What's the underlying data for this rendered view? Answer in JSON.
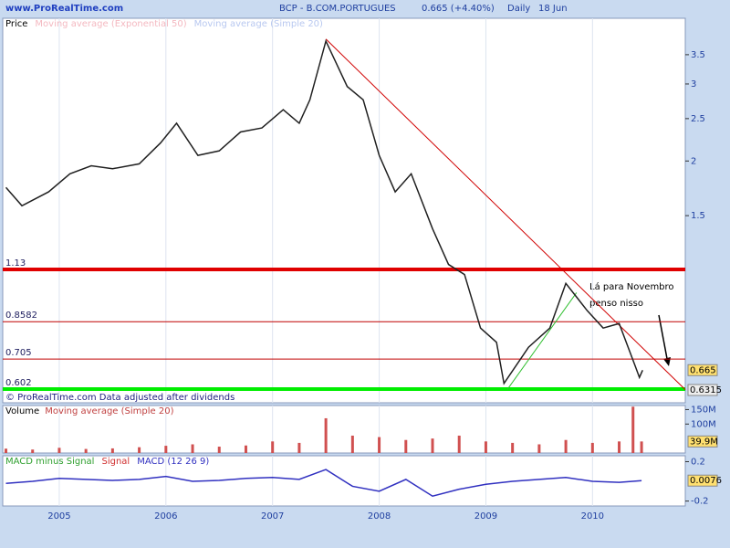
{
  "site": "www.ProRealTime.com",
  "title": "BCP - B.COM.PORTUGUES",
  "quote": "0.665 (+4.40%)",
  "period": "Daily",
  "date": "18 Jun",
  "copyright": "© ProRealTime.com  Data adjusted after dividends",
  "annotation": [
    "Lá para Novembro",
    "penso nisso"
  ],
  "chart_data": [
    {
      "type": "line",
      "title": "Price",
      "log_scale": true,
      "indicators": [
        {
          "name": "Moving average (Exponential 50)",
          "color": "#f4b8c0"
        },
        {
          "name": "Moving average (Simple 20)",
          "color": "#b8c8f0"
        }
      ],
      "xlim": [
        2004.47,
        2010.87
      ],
      "xticks": [
        2005,
        2006,
        2007,
        2008,
        2009,
        2010
      ],
      "ylim": [
        0.56,
        4.24
      ],
      "yticks": [
        1.5,
        2,
        2.5,
        3,
        3.5
      ],
      "x": [
        2004.5,
        2004.65,
        2004.9,
        2005.1,
        2005.3,
        2005.5,
        2005.75,
        2005.95,
        2006.1,
        2006.3,
        2006.5,
        2006.7,
        2006.9,
        2007.1,
        2007.25,
        2007.35,
        2007.5,
        2007.7,
        2007.85,
        2008.0,
        2008.15,
        2008.3,
        2008.5,
        2008.65,
        2008.8,
        2008.95,
        2009.1,
        2009.17,
        2009.4,
        2009.6,
        2009.75,
        2009.95,
        2010.1,
        2010.25,
        2010.4,
        2010.44,
        2010.47
      ],
      "series": [
        {
          "name": "Price",
          "color": "#202020",
          "values": [
            1.74,
            1.58,
            1.7,
            1.87,
            1.95,
            1.92,
            1.97,
            2.2,
            2.44,
            2.06,
            2.11,
            2.33,
            2.38,
            2.62,
            2.44,
            2.76,
            3.76,
            2.96,
            2.76,
            2.06,
            1.7,
            1.87,
            1.4,
            1.16,
            1.1,
            0.83,
            0.77,
            0.62,
            0.75,
            0.83,
            1.05,
            0.91,
            0.83,
            0.85,
            0.68,
            0.64,
            0.665
          ]
        }
      ],
      "levels": [
        {
          "value": 1.13,
          "color": "#e00000",
          "style": "thick"
        },
        {
          "value": 0.8582,
          "color": "#c00000",
          "style": "thin"
        },
        {
          "value": 0.705,
          "color": "#c00000",
          "style": "thin"
        },
        {
          "value": 0.602,
          "color": "#00ee00",
          "style": "thick"
        }
      ],
      "trendlines": [
        {
          "color": "#d00000",
          "x": [
            2007.5,
            2010.87
          ],
          "values": [
            3.8,
            0.6
          ]
        },
        {
          "color": "#30c030",
          "x": [
            2009.2,
            2009.85
          ],
          "values": [
            0.6,
            1.0
          ]
        }
      ],
      "last_values": [
        0.665,
        0.6315
      ]
    },
    {
      "type": "bar",
      "title": "Volume",
      "indicator": {
        "name": "Moving average (Simple 20)",
        "color": "#c04040"
      },
      "color": "#d05050",
      "ylim": [
        0,
        164
      ],
      "yticks": [
        {
          "value": 150,
          "label": "150M"
        },
        {
          "value": 100,
          "label": "100M"
        }
      ],
      "x": [
        2004.5,
        2004.75,
        2005.0,
        2005.25,
        2005.5,
        2005.75,
        2006.0,
        2006.25,
        2006.5,
        2006.75,
        2007.0,
        2007.25,
        2007.5,
        2007.75,
        2008.0,
        2008.25,
        2008.5,
        2008.75,
        2009.0,
        2009.25,
        2009.5,
        2009.75,
        2010.0,
        2010.25,
        2010.38,
        2010.46
      ],
      "values": [
        15,
        12,
        18,
        14,
        16,
        20,
        25,
        30,
        22,
        26,
        40,
        35,
        120,
        60,
        55,
        45,
        50,
        60,
        40,
        35,
        30,
        45,
        35,
        40,
        160,
        39.9
      ],
      "value_labels": [
        null,
        null,
        null,
        null,
        null,
        null,
        null,
        null,
        null,
        null,
        null,
        null,
        null,
        null,
        null,
        null,
        null,
        null,
        null,
        null,
        null,
        null,
        null,
        null,
        null,
        "39.9M"
      ]
    },
    {
      "type": "line",
      "title": "MACD (12 26 9)",
      "indicators": [
        {
          "name": "MACD minus Signal",
          "color": "#30a030"
        },
        {
          "name": "Signal",
          "color": "#d03030"
        }
      ],
      "ylim": [
        -0.25,
        0.26
      ],
      "yticks": [
        0.2,
        {
          "value": -0.2,
          "label": "-0.2"
        }
      ],
      "x": [
        2004.5,
        2004.75,
        2005.0,
        2005.25,
        2005.5,
        2005.75,
        2006.0,
        2006.25,
        2006.5,
        2006.75,
        2007.0,
        2007.25,
        2007.5,
        2007.75,
        2008.0,
        2008.25,
        2008.5,
        2008.75,
        2009.0,
        2009.25,
        2009.5,
        2009.75,
        2010.0,
        2010.25,
        2010.46
      ],
      "series": [
        {
          "name": "MACD (12 26 9)",
          "color": "#3030c0",
          "values": [
            -0.02,
            0.0,
            0.03,
            0.02,
            0.01,
            0.02,
            0.05,
            0.0,
            0.01,
            0.03,
            0.04,
            0.02,
            0.12,
            -0.05,
            -0.1,
            0.02,
            -0.15,
            -0.08,
            -0.03,
            0.0,
            0.02,
            0.04,
            0.0,
            -0.01,
            0.0076
          ]
        }
      ],
      "last_values": [
        0.0076
      ]
    }
  ]
}
